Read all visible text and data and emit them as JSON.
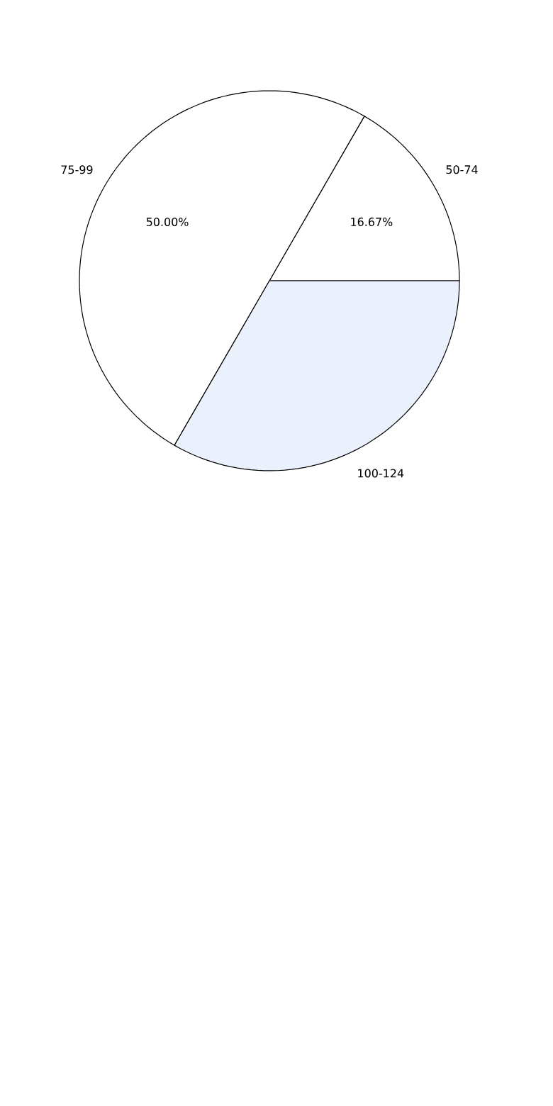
{
  "chart_data": {
    "type": "pie",
    "categories": [
      "50-74",
      "75-99",
      "100-124"
    ],
    "values": [
      16.67,
      50.0,
      33.33
    ],
    "colors": [
      "#ffffff",
      "#ffffff",
      "#eaf1fd"
    ],
    "value_labels": [
      "16.67%",
      "50.00%",
      null
    ]
  }
}
